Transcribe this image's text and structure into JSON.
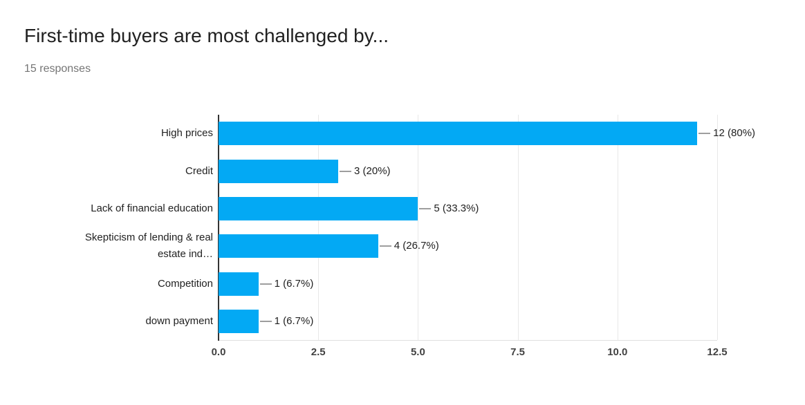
{
  "header": {
    "title": "First-time buyers are most challenged by...",
    "subtitle": "15 responses"
  },
  "chart_data": {
    "type": "bar",
    "orientation": "horizontal",
    "title": "First-time buyers are most challenged by...",
    "subtitle": "15 responses",
    "total_responses": 15,
    "categories": [
      "High prices",
      "Credit",
      "Lack of financial education",
      "Skepticism of lending & real\nestate ind…",
      "Competition",
      "down payment"
    ],
    "values": [
      12,
      3,
      5,
      4,
      1,
      1
    ],
    "value_labels": [
      "12 (80%)",
      "3 (20%)",
      "5 (33.3%)",
      "4 (26.7%)",
      "1 (6.7%)",
      "1 (6.7%)"
    ],
    "x_ticks": [
      "0.0",
      "2.5",
      "5.0",
      "7.5",
      "10.0",
      "12.5"
    ],
    "xlim": [
      0,
      12.5
    ],
    "xlabel": "",
    "ylabel": "",
    "grid": true,
    "legend": "none",
    "bar_color": "#03a9f4",
    "axis_color": "#333333",
    "gridline_color": "#e8e8e8",
    "stem_color": "#9e9e9e",
    "tick_color": "#424242",
    "label_color": "#212121"
  }
}
